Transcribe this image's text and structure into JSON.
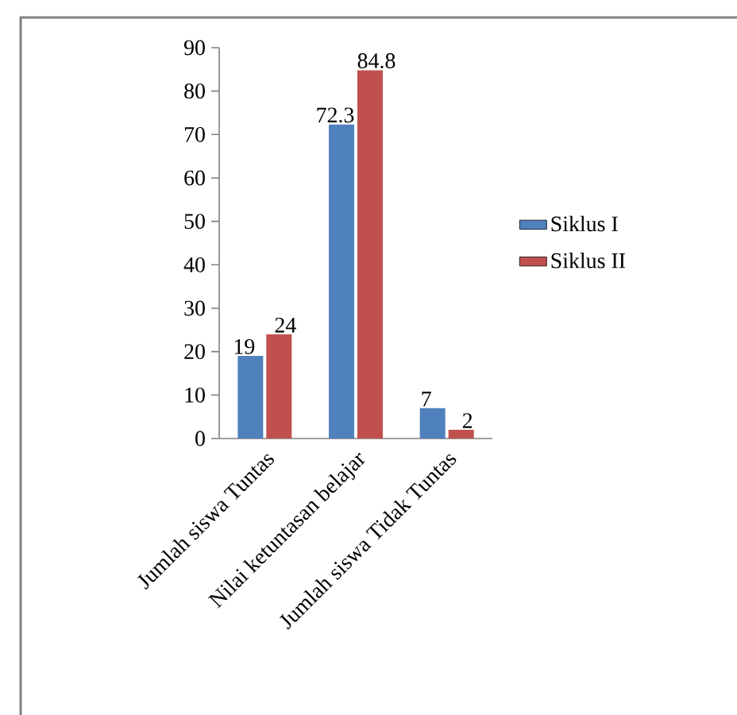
{
  "chart_data": {
    "type": "bar",
    "categories": [
      "Jumlah siswa Tuntas",
      "Nilai ketuntasan belajar",
      "Jumlah siswa Tidak Tuntas"
    ],
    "series": [
      {
        "name": "Siklus I",
        "color": "#4f81bd",
        "values": [
          19,
          72.3,
          7
        ]
      },
      {
        "name": "Siklus II",
        "color": "#c0504d",
        "values": [
          24,
          84.8,
          2
        ]
      }
    ],
    "ylim": [
      0,
      90
    ],
    "yticks": [
      0,
      10,
      20,
      30,
      40,
      50,
      60,
      70,
      80,
      90
    ],
    "data_labels": true,
    "legend": "right"
  }
}
